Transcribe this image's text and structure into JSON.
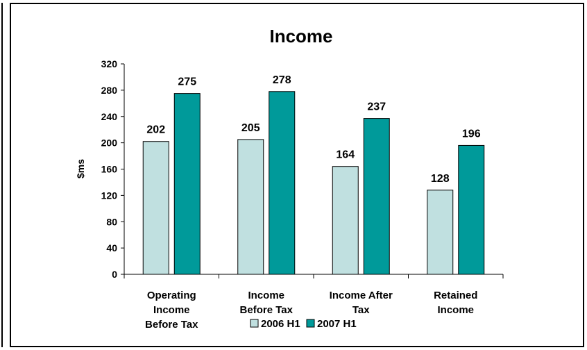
{
  "chart_data": {
    "type": "bar",
    "title": "Income",
    "ylabel": "$ms",
    "xlabel": "",
    "ylim": [
      0,
      320
    ],
    "yticks": [
      0,
      40,
      80,
      120,
      160,
      200,
      240,
      280,
      320
    ],
    "categories": [
      [
        "Operating",
        "Income",
        "Before Tax"
      ],
      [
        "Income",
        "Before Tax"
      ],
      [
        "Income After",
        "Tax"
      ],
      [
        "Retained",
        "Income"
      ]
    ],
    "series": [
      {
        "name": "2006 H1",
        "color": "#c0e0e0",
        "values": [
          202,
          205,
          164,
          128
        ]
      },
      {
        "name": "2007 H1",
        "color": "#009a9a",
        "values": [
          275,
          278,
          237,
          196
        ]
      }
    ],
    "grid": false,
    "legend_position": "bottom"
  }
}
